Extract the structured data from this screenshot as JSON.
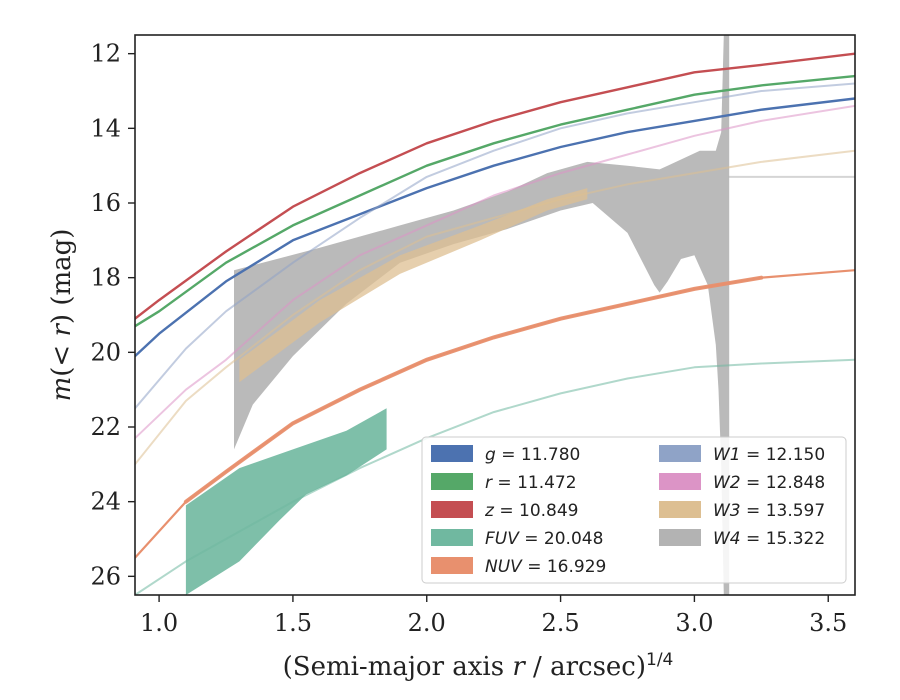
{
  "chart_data": {
    "type": "line",
    "xlabel": "(Semi-major axis r / arcsec)^1/4",
    "xlabel_parts": {
      "pre": "(Semi-major axis ",
      "var": "r",
      "mid": " / arcsec)",
      "sup": "1/4"
    },
    "ylabel": "m(< r) (mag)",
    "ylabel_parts": {
      "pre": "m",
      "mid": "(< ",
      "var": "r",
      "post": ") (mag)"
    },
    "xlim": [
      0.91,
      3.6
    ],
    "ylim": [
      26.5,
      11.5
    ],
    "y_inverted": true,
    "x_ticks": [
      "1.0",
      "1.5",
      "2.0",
      "2.5",
      "3.0",
      "3.5"
    ],
    "y_ticks": [
      "12",
      "14",
      "16",
      "18",
      "20",
      "22",
      "24",
      "26"
    ],
    "grid": false,
    "legend_placement": "lower-right",
    "series": [
      {
        "name": "g",
        "value": "11.780",
        "color": "#4c72b0",
        "curve": [
          [
            0.91,
            20.1
          ],
          [
            1.0,
            19.5
          ],
          [
            1.25,
            18.1
          ],
          [
            1.5,
            17.0
          ],
          [
            1.75,
            16.3
          ],
          [
            2.0,
            15.6
          ],
          [
            2.25,
            15.0
          ],
          [
            2.5,
            14.5
          ],
          [
            2.75,
            14.1
          ],
          [
            3.0,
            13.8
          ],
          [
            3.25,
            13.5
          ],
          [
            3.6,
            13.2
          ]
        ]
      },
      {
        "name": "r",
        "value": "11.472",
        "color": "#55a868",
        "curve": [
          [
            0.91,
            19.3
          ],
          [
            1.0,
            18.9
          ],
          [
            1.25,
            17.6
          ],
          [
            1.5,
            16.6
          ],
          [
            1.75,
            15.8
          ],
          [
            2.0,
            15.0
          ],
          [
            2.25,
            14.4
          ],
          [
            2.5,
            13.9
          ],
          [
            2.75,
            13.5
          ],
          [
            3.0,
            13.1
          ],
          [
            3.25,
            12.85
          ],
          [
            3.6,
            12.6
          ]
        ]
      },
      {
        "name": "z",
        "value": "10.849",
        "color": "#c44e52",
        "curve": [
          [
            0.91,
            19.1
          ],
          [
            1.0,
            18.6
          ],
          [
            1.25,
            17.3
          ],
          [
            1.5,
            16.1
          ],
          [
            1.75,
            15.2
          ],
          [
            2.0,
            14.4
          ],
          [
            2.25,
            13.8
          ],
          [
            2.5,
            13.3
          ],
          [
            2.75,
            12.9
          ],
          [
            3.0,
            12.5
          ],
          [
            3.25,
            12.3
          ],
          [
            3.6,
            12.0
          ]
        ]
      },
      {
        "name": "FUV",
        "value": "20.048",
        "color": "#70b8a0",
        "curve": [
          [
            0.91,
            26.5
          ],
          [
            1.1,
            25.6
          ],
          [
            1.3,
            24.8
          ],
          [
            1.5,
            24.0
          ],
          [
            1.75,
            23.1
          ],
          [
            2.0,
            22.3
          ],
          [
            2.25,
            21.6
          ],
          [
            2.5,
            21.1
          ],
          [
            2.75,
            20.7
          ],
          [
            3.0,
            20.4
          ],
          [
            3.25,
            20.3
          ],
          [
            3.6,
            20.2
          ]
        ],
        "band_upper": [
          [
            1.1,
            24.1
          ],
          [
            1.3,
            23.1
          ],
          [
            1.5,
            22.6
          ],
          [
            1.7,
            22.1
          ],
          [
            1.85,
            21.5
          ]
        ],
        "band_lower": [
          [
            1.1,
            26.5
          ],
          [
            1.3,
            25.6
          ],
          [
            1.45,
            24.5
          ],
          [
            1.55,
            23.8
          ],
          [
            1.7,
            23.3
          ],
          [
            1.85,
            22.6
          ]
        ]
      },
      {
        "name": "NUV",
        "value": "16.929",
        "color": "#e8906e",
        "curve": [
          [
            0.91,
            25.5
          ],
          [
            1.1,
            24.0
          ],
          [
            1.25,
            23.2
          ],
          [
            1.5,
            21.9
          ],
          [
            1.75,
            21.0
          ],
          [
            2.0,
            20.2
          ],
          [
            2.25,
            19.6
          ],
          [
            2.5,
            19.1
          ],
          [
            2.75,
            18.7
          ],
          [
            3.0,
            18.3
          ],
          [
            3.25,
            18.0
          ],
          [
            3.6,
            17.8
          ]
        ]
      },
      {
        "name": "W1",
        "value": "12.150",
        "color": "#8fa3c7",
        "curve": [
          [
            0.91,
            21.5
          ],
          [
            1.1,
            19.9
          ],
          [
            1.25,
            18.9
          ],
          [
            1.5,
            17.6
          ],
          [
            1.75,
            16.4
          ],
          [
            2.0,
            15.3
          ],
          [
            2.25,
            14.6
          ],
          [
            2.5,
            14.0
          ],
          [
            2.75,
            13.6
          ],
          [
            3.0,
            13.3
          ],
          [
            3.25,
            13.0
          ],
          [
            3.6,
            12.8
          ]
        ]
      },
      {
        "name": "W2",
        "value": "12.848",
        "color": "#dc94c6",
        "curve": [
          [
            0.91,
            22.3
          ],
          [
            1.1,
            21.0
          ],
          [
            1.25,
            20.2
          ],
          [
            1.5,
            18.6
          ],
          [
            1.75,
            17.4
          ],
          [
            2.0,
            16.6
          ],
          [
            2.25,
            15.8
          ],
          [
            2.5,
            15.2
          ],
          [
            2.75,
            14.7
          ],
          [
            3.0,
            14.2
          ],
          [
            3.25,
            13.8
          ],
          [
            3.6,
            13.4
          ]
        ]
      },
      {
        "name": "W3",
        "value": "13.597",
        "color": "#ddbf92",
        "curve": [
          [
            0.91,
            23.0
          ],
          [
            1.1,
            21.3
          ],
          [
            1.25,
            20.4
          ],
          [
            1.5,
            19.0
          ],
          [
            1.75,
            17.8
          ],
          [
            2.0,
            16.9
          ],
          [
            2.25,
            16.4
          ],
          [
            2.5,
            15.9
          ],
          [
            2.75,
            15.5
          ],
          [
            3.0,
            15.2
          ],
          [
            3.25,
            14.9
          ],
          [
            3.6,
            14.6
          ]
        ],
        "band_upper": [
          [
            1.3,
            20.2
          ],
          [
            1.6,
            18.6
          ],
          [
            1.9,
            17.4
          ],
          [
            2.2,
            16.6
          ],
          [
            2.45,
            15.9
          ],
          [
            2.6,
            15.6
          ]
        ],
        "band_lower": [
          [
            1.3,
            20.8
          ],
          [
            1.6,
            19.2
          ],
          [
            1.9,
            17.9
          ],
          [
            2.2,
            17.0
          ],
          [
            2.45,
            16.2
          ],
          [
            2.6,
            15.9
          ]
        ]
      },
      {
        "name": "W4",
        "value": "15.322",
        "color": "#b3b3b3",
        "curve": [
          [
            3.13,
            15.3
          ],
          [
            3.6,
            15.3
          ]
        ],
        "band_upper": [
          [
            1.28,
            17.8
          ],
          [
            1.6,
            17.2
          ],
          [
            1.9,
            16.6
          ],
          [
            2.1,
            16.2
          ],
          [
            2.3,
            15.7
          ],
          [
            2.45,
            15.2
          ],
          [
            2.6,
            14.9
          ],
          [
            2.75,
            15.0
          ],
          [
            2.87,
            15.1
          ],
          [
            2.9,
            15.0
          ],
          [
            3.02,
            14.6
          ],
          [
            3.08,
            14.6
          ],
          [
            3.1,
            14.1
          ],
          [
            3.11,
            11.5
          ],
          [
            3.13,
            11.5
          ]
        ],
        "band_lower": [
          [
            1.28,
            22.6
          ],
          [
            1.35,
            21.4
          ],
          [
            1.5,
            20.1
          ],
          [
            1.7,
            18.7
          ],
          [
            1.9,
            17.6
          ],
          [
            2.1,
            17.1
          ],
          [
            2.3,
            16.7
          ],
          [
            2.5,
            16.2
          ],
          [
            2.62,
            16.0
          ],
          [
            2.75,
            16.8
          ],
          [
            2.85,
            18.2
          ],
          [
            2.87,
            18.4
          ],
          [
            2.9,
            18.1
          ],
          [
            2.95,
            17.5
          ],
          [
            3.0,
            17.4
          ],
          [
            3.05,
            18.2
          ],
          [
            3.08,
            19.8
          ],
          [
            3.09,
            21.0
          ],
          [
            3.1,
            23.0
          ],
          [
            3.11,
            26.5
          ],
          [
            3.13,
            26.5
          ]
        ]
      }
    ]
  }
}
